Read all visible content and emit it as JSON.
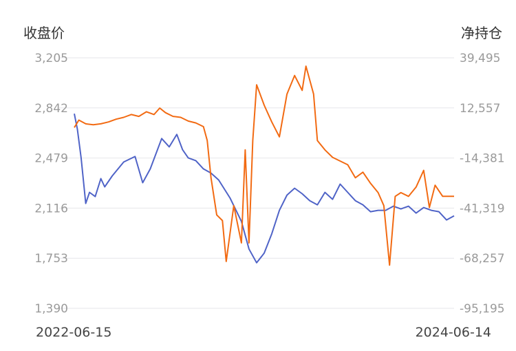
{
  "chart_data": {
    "type": "line",
    "left_axis_title": "收盘价",
    "right_axis_title": "净持仓",
    "left_ticks": [
      "3,205",
      "2,842",
      "2,479",
      "2,116",
      "1,753",
      "1,390"
    ],
    "right_ticks": [
      "39,495",
      "12,557",
      "-14,381",
      "-41,319",
      "-68,257",
      "-95,195"
    ],
    "x_start_label": "2022-06-15",
    "x_end_label": "2024-06-14",
    "left_ylim": [
      1390,
      3205
    ],
    "right_ylim": [
      -95195,
      39495
    ],
    "grid": "horizontal",
    "colors": {
      "close": "#4f63c7",
      "position": "#f26a12"
    },
    "series": [
      {
        "key": "close",
        "axis": "left",
        "values": [
          [
            0.0,
            2800
          ],
          [
            0.008,
            2690
          ],
          [
            0.018,
            2480
          ],
          [
            0.03,
            2150
          ],
          [
            0.04,
            2230
          ],
          [
            0.055,
            2200
          ],
          [
            0.07,
            2330
          ],
          [
            0.08,
            2270
          ],
          [
            0.1,
            2350
          ],
          [
            0.13,
            2450
          ],
          [
            0.16,
            2490
          ],
          [
            0.18,
            2300
          ],
          [
            0.2,
            2400
          ],
          [
            0.23,
            2620
          ],
          [
            0.25,
            2560
          ],
          [
            0.27,
            2650
          ],
          [
            0.285,
            2540
          ],
          [
            0.3,
            2480
          ],
          [
            0.32,
            2460
          ],
          [
            0.34,
            2400
          ],
          [
            0.36,
            2370
          ],
          [
            0.38,
            2320
          ],
          [
            0.41,
            2190
          ],
          [
            0.44,
            2020
          ],
          [
            0.46,
            1820
          ],
          [
            0.48,
            1720
          ],
          [
            0.5,
            1790
          ],
          [
            0.52,
            1930
          ],
          [
            0.54,
            2100
          ],
          [
            0.56,
            2210
          ],
          [
            0.58,
            2260
          ],
          [
            0.6,
            2220
          ],
          [
            0.62,
            2170
          ],
          [
            0.64,
            2140
          ],
          [
            0.66,
            2230
          ],
          [
            0.68,
            2180
          ],
          [
            0.7,
            2290
          ],
          [
            0.72,
            2230
          ],
          [
            0.74,
            2170
          ],
          [
            0.76,
            2140
          ],
          [
            0.78,
            2090
          ],
          [
            0.8,
            2100
          ],
          [
            0.82,
            2100
          ],
          [
            0.84,
            2130
          ],
          [
            0.86,
            2110
          ],
          [
            0.88,
            2130
          ],
          [
            0.9,
            2080
          ],
          [
            0.92,
            2120
          ],
          [
            0.94,
            2100
          ],
          [
            0.96,
            2090
          ],
          [
            0.98,
            2030
          ],
          [
            1.0,
            2060
          ]
        ]
      },
      {
        "key": "position",
        "axis": "right",
        "values": [
          [
            0.0,
            2000
          ],
          [
            0.012,
            6000
          ],
          [
            0.03,
            4000
          ],
          [
            0.05,
            3500
          ],
          [
            0.07,
            4000
          ],
          [
            0.09,
            5000
          ],
          [
            0.11,
            6500
          ],
          [
            0.13,
            7500
          ],
          [
            0.15,
            9000
          ],
          [
            0.17,
            8000
          ],
          [
            0.19,
            10500
          ],
          [
            0.21,
            9000
          ],
          [
            0.225,
            12500
          ],
          [
            0.24,
            10000
          ],
          [
            0.26,
            8000
          ],
          [
            0.28,
            7500
          ],
          [
            0.3,
            5500
          ],
          [
            0.32,
            4500
          ],
          [
            0.34,
            2500
          ],
          [
            0.35,
            -5000
          ],
          [
            0.36,
            -25000
          ],
          [
            0.375,
            -45000
          ],
          [
            0.39,
            -48000
          ],
          [
            0.4,
            -70000
          ],
          [
            0.42,
            -40000
          ],
          [
            0.44,
            -60000
          ],
          [
            0.45,
            -10000
          ],
          [
            0.46,
            -60000
          ],
          [
            0.47,
            -5000
          ],
          [
            0.48,
            25000
          ],
          [
            0.5,
            14000
          ],
          [
            0.52,
            5000
          ],
          [
            0.54,
            -3000
          ],
          [
            0.56,
            20000
          ],
          [
            0.58,
            30000
          ],
          [
            0.6,
            22000
          ],
          [
            0.61,
            35000
          ],
          [
            0.63,
            20000
          ],
          [
            0.64,
            -5000
          ],
          [
            0.66,
            -10000
          ],
          [
            0.68,
            -14000
          ],
          [
            0.7,
            -16000
          ],
          [
            0.72,
            -18000
          ],
          [
            0.74,
            -25000
          ],
          [
            0.76,
            -22000
          ],
          [
            0.78,
            -28000
          ],
          [
            0.8,
            -33000
          ],
          [
            0.815,
            -40000
          ],
          [
            0.83,
            -72000
          ],
          [
            0.845,
            -35000
          ],
          [
            0.86,
            -33000
          ],
          [
            0.88,
            -35000
          ],
          [
            0.9,
            -30000
          ],
          [
            0.92,
            -21000
          ],
          [
            0.935,
            -41000
          ],
          [
            0.95,
            -29000
          ],
          [
            0.97,
            -35000
          ],
          [
            1.0,
            -35000
          ]
        ]
      }
    ]
  }
}
